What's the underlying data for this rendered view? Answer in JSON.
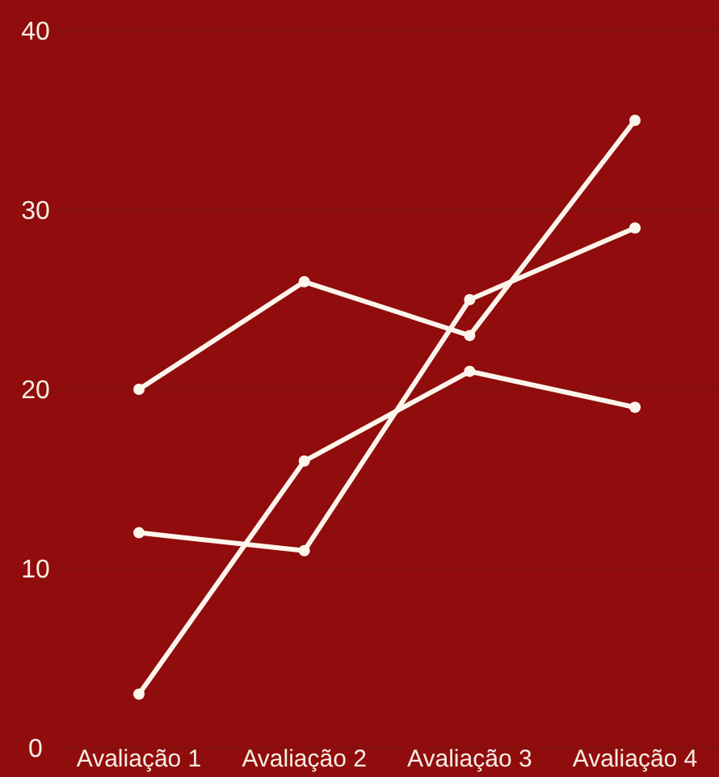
{
  "chart_data": {
    "type": "line",
    "categories": [
      "Avaliação 1",
      "Avaliação 2",
      "Avaliação 3",
      "Avaliação 4"
    ],
    "series": [
      {
        "color": "#fdf5ec",
        "values": [
          20,
          26,
          23,
          35
        ]
      },
      {
        "color": "#fdf5ec",
        "values": [
          12,
          11,
          25,
          29
        ]
      },
      {
        "color": "#fdf5ec",
        "values": [
          3,
          16,
          21,
          19
        ]
      }
    ],
    "ylim": [
      0,
      40
    ],
    "yticks": [
      0,
      10,
      20,
      30,
      40
    ],
    "grid": "y",
    "marker": "circle",
    "line_style": "solid",
    "legend": false
  }
}
